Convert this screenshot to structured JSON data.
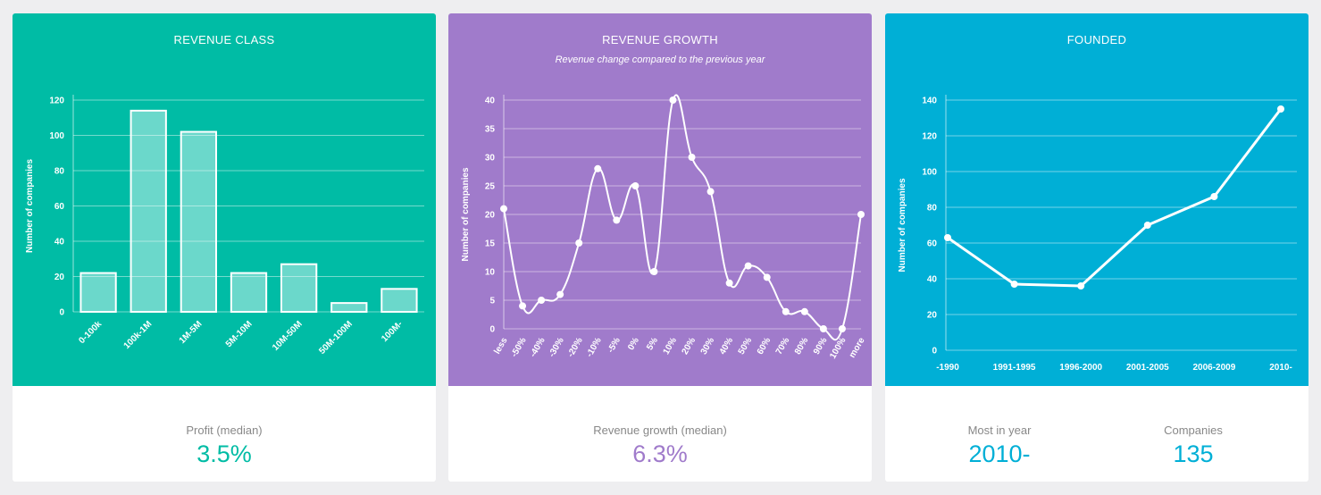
{
  "colors": {
    "teal": "#00bca5",
    "purple": "#a07bcb",
    "blue": "#00afd6",
    "page_bg": "#eeeef0"
  },
  "stats": {
    "profit": {
      "label": "Profit (median)",
      "value": "3.5%"
    },
    "growth": {
      "label": "Revenue growth (median)",
      "value": "6.3%"
    },
    "most_in_year": {
      "label": "Most in year",
      "value": "2010-"
    },
    "companies": {
      "label": "Companies",
      "value": "135"
    }
  },
  "chart_data": [
    {
      "id": "revenue-class",
      "type": "bar",
      "title": "REVENUE CLASS",
      "ylabel": "Number of companies",
      "categories": [
        "0-100k",
        "100k-1M",
        "1M-5M",
        "5M-10M",
        "10M-50M",
        "50M-100M",
        "100M-"
      ],
      "values": [
        22,
        114,
        102,
        22,
        27,
        5,
        13
      ],
      "ylim": [
        0,
        120
      ],
      "yticks": [
        0,
        20,
        40,
        60,
        80,
        100,
        120
      ],
      "grid": true
    },
    {
      "id": "revenue-growth",
      "type": "line",
      "title": "REVENUE GROWTH",
      "subtitle": "Revenue change compared to the previous year",
      "ylabel": "Number of companies",
      "categories": [
        "less",
        "-50%",
        "-40%",
        "-30%",
        "-20%",
        "-10%",
        "-5%",
        "0%",
        "5%",
        "10%",
        "20%",
        "30%",
        "40%",
        "50%",
        "60%",
        "70%",
        "80%",
        "90%",
        "100%",
        "more"
      ],
      "values": [
        21,
        4,
        5,
        6,
        15,
        28,
        19,
        25,
        10,
        40,
        30,
        24,
        8,
        11,
        9,
        3,
        3,
        0,
        0,
        20
      ],
      "ylim": [
        0,
        40
      ],
      "yticks": [
        0,
        5,
        10,
        15,
        20,
        25,
        30,
        35,
        40
      ],
      "smooth": true,
      "grid": true
    },
    {
      "id": "founded",
      "type": "line",
      "title": "FOUNDED",
      "ylabel": "Number of companies",
      "categories": [
        "-1990",
        "1991-1995",
        "1996-2000",
        "2001-2005",
        "2006-2009",
        "2010-"
      ],
      "values": [
        63,
        37,
        36,
        70,
        86,
        135
      ],
      "ylim": [
        0,
        140
      ],
      "yticks": [
        0,
        20,
        40,
        60,
        80,
        100,
        120,
        140
      ],
      "smooth": false,
      "grid": true
    }
  ]
}
